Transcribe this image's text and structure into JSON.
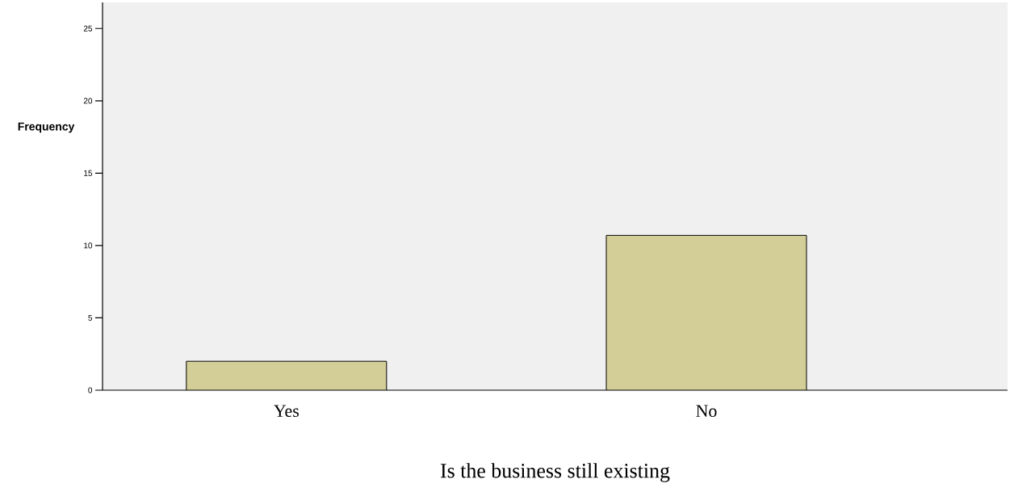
{
  "chart_data": {
    "type": "bar",
    "xlabel": "Is the business still existing",
    "ylabel": "Frequency",
    "categories": [
      "Yes",
      "No"
    ],
    "values": [
      2,
      10.7
    ],
    "color": "#d3ce97",
    "ylim": [
      0,
      26.8
    ],
    "yticks": [
      0,
      5,
      10,
      15,
      20,
      25
    ],
    "grid": false
  }
}
